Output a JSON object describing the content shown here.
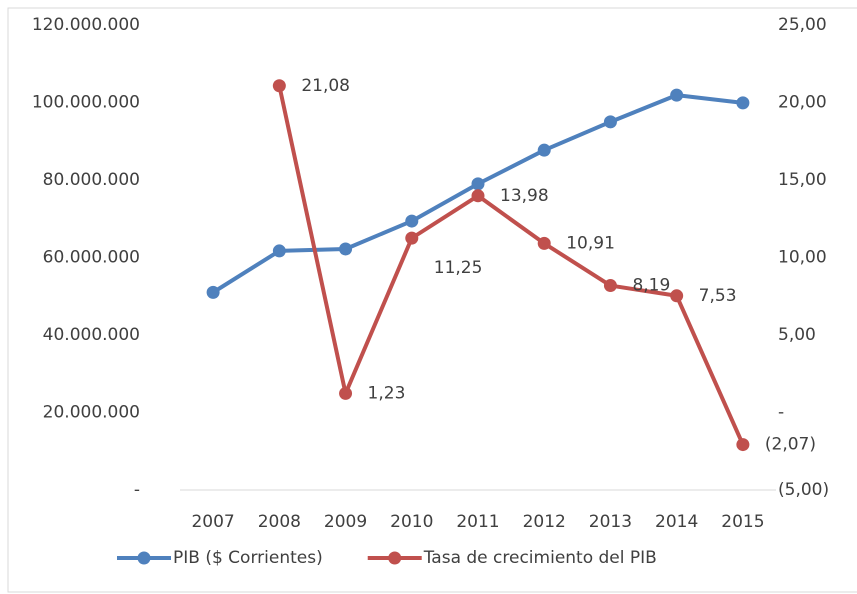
{
  "chart_data": {
    "type": "line",
    "categories": [
      "2007",
      "2008",
      "2009",
      "2010",
      "2011",
      "2012",
      "2013",
      "2014",
      "2015"
    ],
    "series": [
      {
        "name": "PIB ($ Corrientes)",
        "color": "#4f81bd",
        "axis": "y",
        "values": [
          51000000,
          61700000,
          62200000,
          69400000,
          79000000,
          87700000,
          95000000,
          101900000,
          99900000
        ]
      },
      {
        "name": "Tasa de crecimiento del PIB",
        "color": "#c0504d",
        "axis": "y2",
        "values": [
          null,
          21.08,
          1.23,
          11.25,
          13.98,
          10.91,
          8.19,
          7.53,
          -2.07
        ],
        "value_labels": [
          null,
          "21,08",
          "1,23",
          "11,25",
          "13,98",
          "10,91",
          "8,19",
          "7,53",
          "(2,07)"
        ]
      }
    ],
    "ylim": [
      0,
      120000000
    ],
    "yticks": [
      {
        "value": 0,
        "label": "-"
      },
      {
        "value": 20000000,
        "label": "20.000.000"
      },
      {
        "value": 40000000,
        "label": "40.000.000"
      },
      {
        "value": 60000000,
        "label": "60.000.000"
      },
      {
        "value": 80000000,
        "label": "80.000.000"
      },
      {
        "value": 100000000,
        "label": "100.000.000"
      },
      {
        "value": 120000000,
        "label": "120.000.000"
      }
    ],
    "y2lim": [
      -5,
      25
    ],
    "y2ticks": [
      {
        "value": -5,
        "label": "(5,00)"
      },
      {
        "value": 0,
        "label": "-"
      },
      {
        "value": 5,
        "label": "5,00"
      },
      {
        "value": 10,
        "label": "10,00"
      },
      {
        "value": 15,
        "label": "15,00"
      },
      {
        "value": 20,
        "label": "20,00"
      },
      {
        "value": 25,
        "label": "25,00"
      }
    ],
    "legend": "bottom",
    "grid": false
  }
}
